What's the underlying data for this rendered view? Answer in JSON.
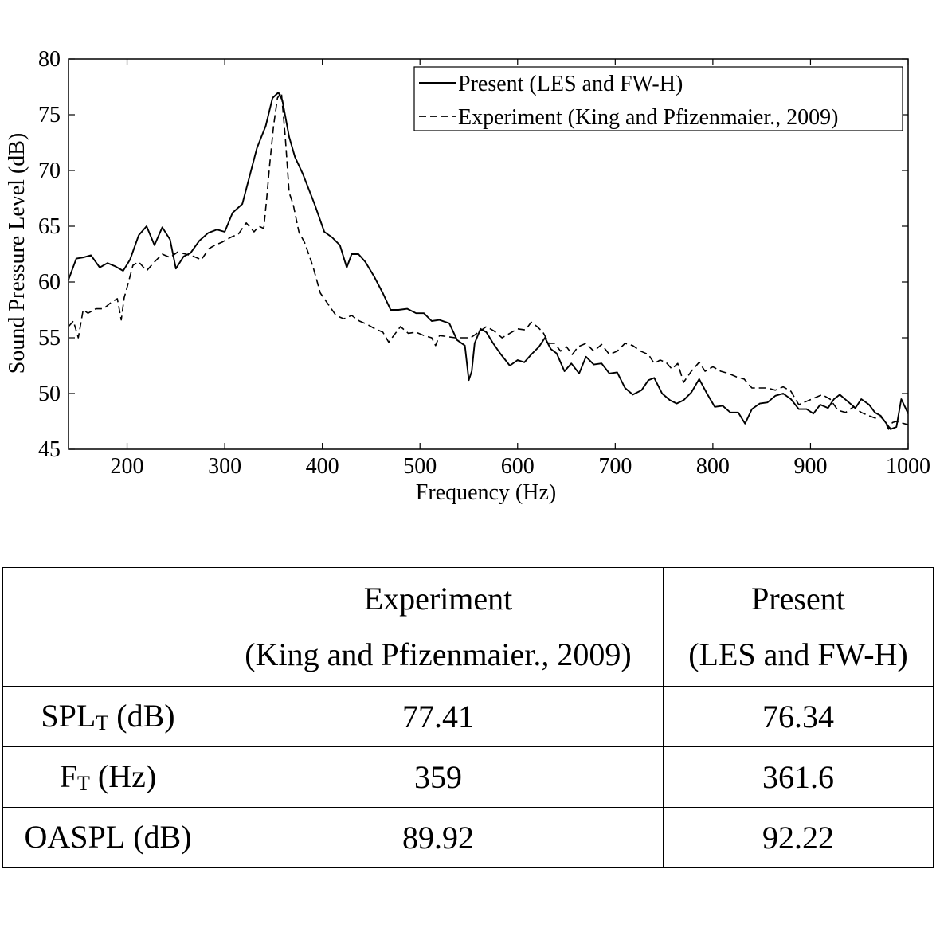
{
  "chart_data": {
    "type": "line",
    "title": "",
    "xlabel": "Frequency (Hz)",
    "ylabel": "Sound Pressure Level (dB)",
    "xlim": [
      140,
      1000
    ],
    "ylim": [
      45,
      80
    ],
    "xticks": [
      200,
      300,
      400,
      500,
      600,
      700,
      800,
      900,
      1000
    ],
    "yticks": [
      45,
      50,
      55,
      60,
      65,
      70,
      75,
      80
    ],
    "grid": false,
    "legend_position": "top-right",
    "series": [
      {
        "name": "Present (LES and FW-H)",
        "style": "solid",
        "x": [
          140,
          148,
          155,
          163,
          172,
          180,
          188,
          196,
          203,
          212,
          220,
          228,
          236,
          244,
          250,
          258,
          265,
          274,
          283,
          292,
          300,
          308,
          318,
          327,
          333,
          342,
          349,
          355,
          359,
          366,
          372,
          380,
          392,
          402,
          410,
          418,
          425,
          430,
          437,
          444,
          453,
          462,
          470,
          478,
          487,
          496,
          504,
          512,
          520,
          530,
          538,
          546,
          550,
          553,
          556,
          562,
          568,
          575,
          583,
          592,
          600,
          607,
          614,
          622,
          628,
          634,
          640,
          648,
          655,
          663,
          670,
          678,
          686,
          694,
          702,
          710,
          718,
          727,
          734,
          740,
          748,
          756,
          763,
          770,
          778,
          786,
          794,
          802,
          810,
          818,
          826,
          833,
          840,
          848,
          856,
          864,
          872,
          880,
          888,
          896,
          903,
          910,
          918,
          924,
          930,
          938,
          946,
          952,
          960,
          966,
          972,
          977,
          982,
          988,
          993,
          1000
        ],
        "y": [
          60.2,
          62.1,
          62.2,
          62.4,
          61.3,
          61.7,
          61.4,
          61.0,
          62.0,
          64.2,
          65.0,
          63.3,
          64.9,
          63.8,
          61.2,
          62.3,
          62.6,
          63.7,
          64.4,
          64.7,
          64.5,
          66.2,
          67.0,
          70.0,
          72.0,
          74.0,
          76.5,
          77.0,
          76.3,
          73.0,
          71.2,
          69.7,
          67.0,
          64.5,
          64.0,
          63.3,
          61.3,
          62.5,
          62.5,
          61.8,
          60.5,
          59.0,
          57.5,
          57.5,
          57.6,
          57.2,
          57.2,
          56.5,
          56.6,
          56.3,
          54.8,
          54.3,
          51.2,
          52.0,
          54.5,
          55.8,
          55.5,
          54.5,
          53.5,
          52.5,
          53.0,
          52.8,
          53.5,
          54.2,
          55.0,
          54.0,
          53.6,
          52.0,
          52.7,
          51.8,
          53.3,
          52.6,
          52.7,
          51.8,
          51.9,
          50.5,
          49.9,
          50.3,
          51.2,
          51.4,
          50.0,
          49.4,
          49.1,
          49.4,
          50.1,
          51.3,
          50.0,
          48.8,
          48.9,
          48.3,
          48.3,
          47.3,
          48.6,
          49.1,
          49.2,
          49.8,
          50.0,
          49.5,
          48.6,
          48.6,
          48.2,
          49.0,
          48.7,
          49.5,
          49.9,
          49.3,
          48.7,
          49.5,
          49.0,
          48.3,
          48.0,
          47.4,
          46.8,
          47.0,
          49.5,
          48.2
        ]
      },
      {
        "name": "Experiment (King and Pfizenmaier., 2009)",
        "style": "dashed",
        "x": [
          140,
          145,
          150,
          155,
          160,
          168,
          176,
          184,
          190,
          194,
          197,
          200,
          206,
          212,
          220,
          228,
          236,
          244,
          252,
          260,
          268,
          276,
          284,
          290,
          298,
          306,
          314,
          322,
          330,
          335,
          340,
          343,
          346,
          350,
          354,
          358,
          362,
          366,
          370,
          376,
          382,
          390,
          398,
          406,
          414,
          422,
          430,
          438,
          446,
          454,
          462,
          468,
          474,
          480,
          488,
          496,
          504,
          512,
          516,
          520,
          528,
          536,
          544,
          552,
          560,
          568,
          576,
          584,
          592,
          600,
          608,
          614,
          620,
          626,
          632,
          638,
          644,
          650,
          656,
          662,
          670,
          678,
          686,
          694,
          702,
          710,
          718,
          726,
          734,
          740,
          746,
          752,
          758,
          764,
          770,
          778,
          786,
          792,
          800,
          808,
          816,
          824,
          832,
          840,
          848,
          856,
          864,
          872,
          880,
          888,
          896,
          904,
          912,
          920,
          928,
          936,
          944,
          952,
          960,
          966,
          972,
          976,
          980,
          984,
          988,
          1000
        ],
        "y": [
          56.0,
          56.5,
          55.0,
          57.5,
          57.2,
          57.6,
          57.6,
          58.2,
          58.5,
          56.6,
          58.6,
          59.5,
          61.5,
          61.8,
          61.0,
          61.8,
          62.5,
          62.2,
          62.7,
          62.5,
          62.3,
          62.0,
          63.0,
          63.3,
          63.6,
          64.0,
          64.3,
          65.3,
          64.5,
          65.0,
          64.8,
          67.5,
          70.5,
          74.0,
          76.5,
          77.0,
          73.0,
          68.0,
          67.0,
          64.5,
          63.5,
          61.5,
          59.0,
          58.0,
          57.0,
          56.7,
          57.0,
          56.5,
          56.2,
          55.8,
          55.5,
          54.6,
          55.3,
          56.0,
          55.4,
          55.5,
          55.2,
          55.0,
          54.3,
          55.2,
          55.1,
          55.0,
          55.0,
          55.0,
          55.5,
          56.0,
          55.6,
          55.0,
          55.4,
          55.8,
          55.7,
          56.4,
          56.0,
          55.5,
          54.5,
          54.5,
          53.8,
          54.2,
          53.5,
          54.2,
          54.5,
          53.8,
          54.4,
          53.5,
          53.8,
          54.5,
          54.3,
          53.8,
          53.5,
          52.7,
          53.0,
          52.8,
          52.2,
          52.7,
          51.0,
          52.0,
          52.8,
          52.0,
          52.4,
          52.0,
          51.8,
          51.5,
          51.3,
          50.5,
          50.5,
          50.5,
          50.3,
          50.6,
          50.2,
          49.0,
          49.3,
          49.6,
          49.9,
          49.5,
          48.5,
          48.3,
          48.8,
          48.3,
          48.0,
          47.8,
          47.9,
          47.5,
          46.8,
          47.4,
          47.5,
          47.2
        ]
      }
    ]
  },
  "table": {
    "header": {
      "blank": "",
      "col1_line1": "Experiment",
      "col1_line2": "(King and Pfizenmaier., 2009)",
      "col2_line1": "Present",
      "col2_line2": "(LES and FW-H)"
    },
    "rows": [
      {
        "label_main": "SPL",
        "label_sub": "T",
        "label_unit": " (dB)",
        "experiment": "77.41",
        "present": "76.34"
      },
      {
        "label_main": "F",
        "label_sub": "T",
        "label_unit": " (Hz)",
        "experiment": "359",
        "present": "361.6"
      },
      {
        "label_main": "OASPL",
        "label_sub": "",
        "label_unit": " (dB)",
        "experiment": "89.92",
        "present": "92.22"
      }
    ]
  }
}
